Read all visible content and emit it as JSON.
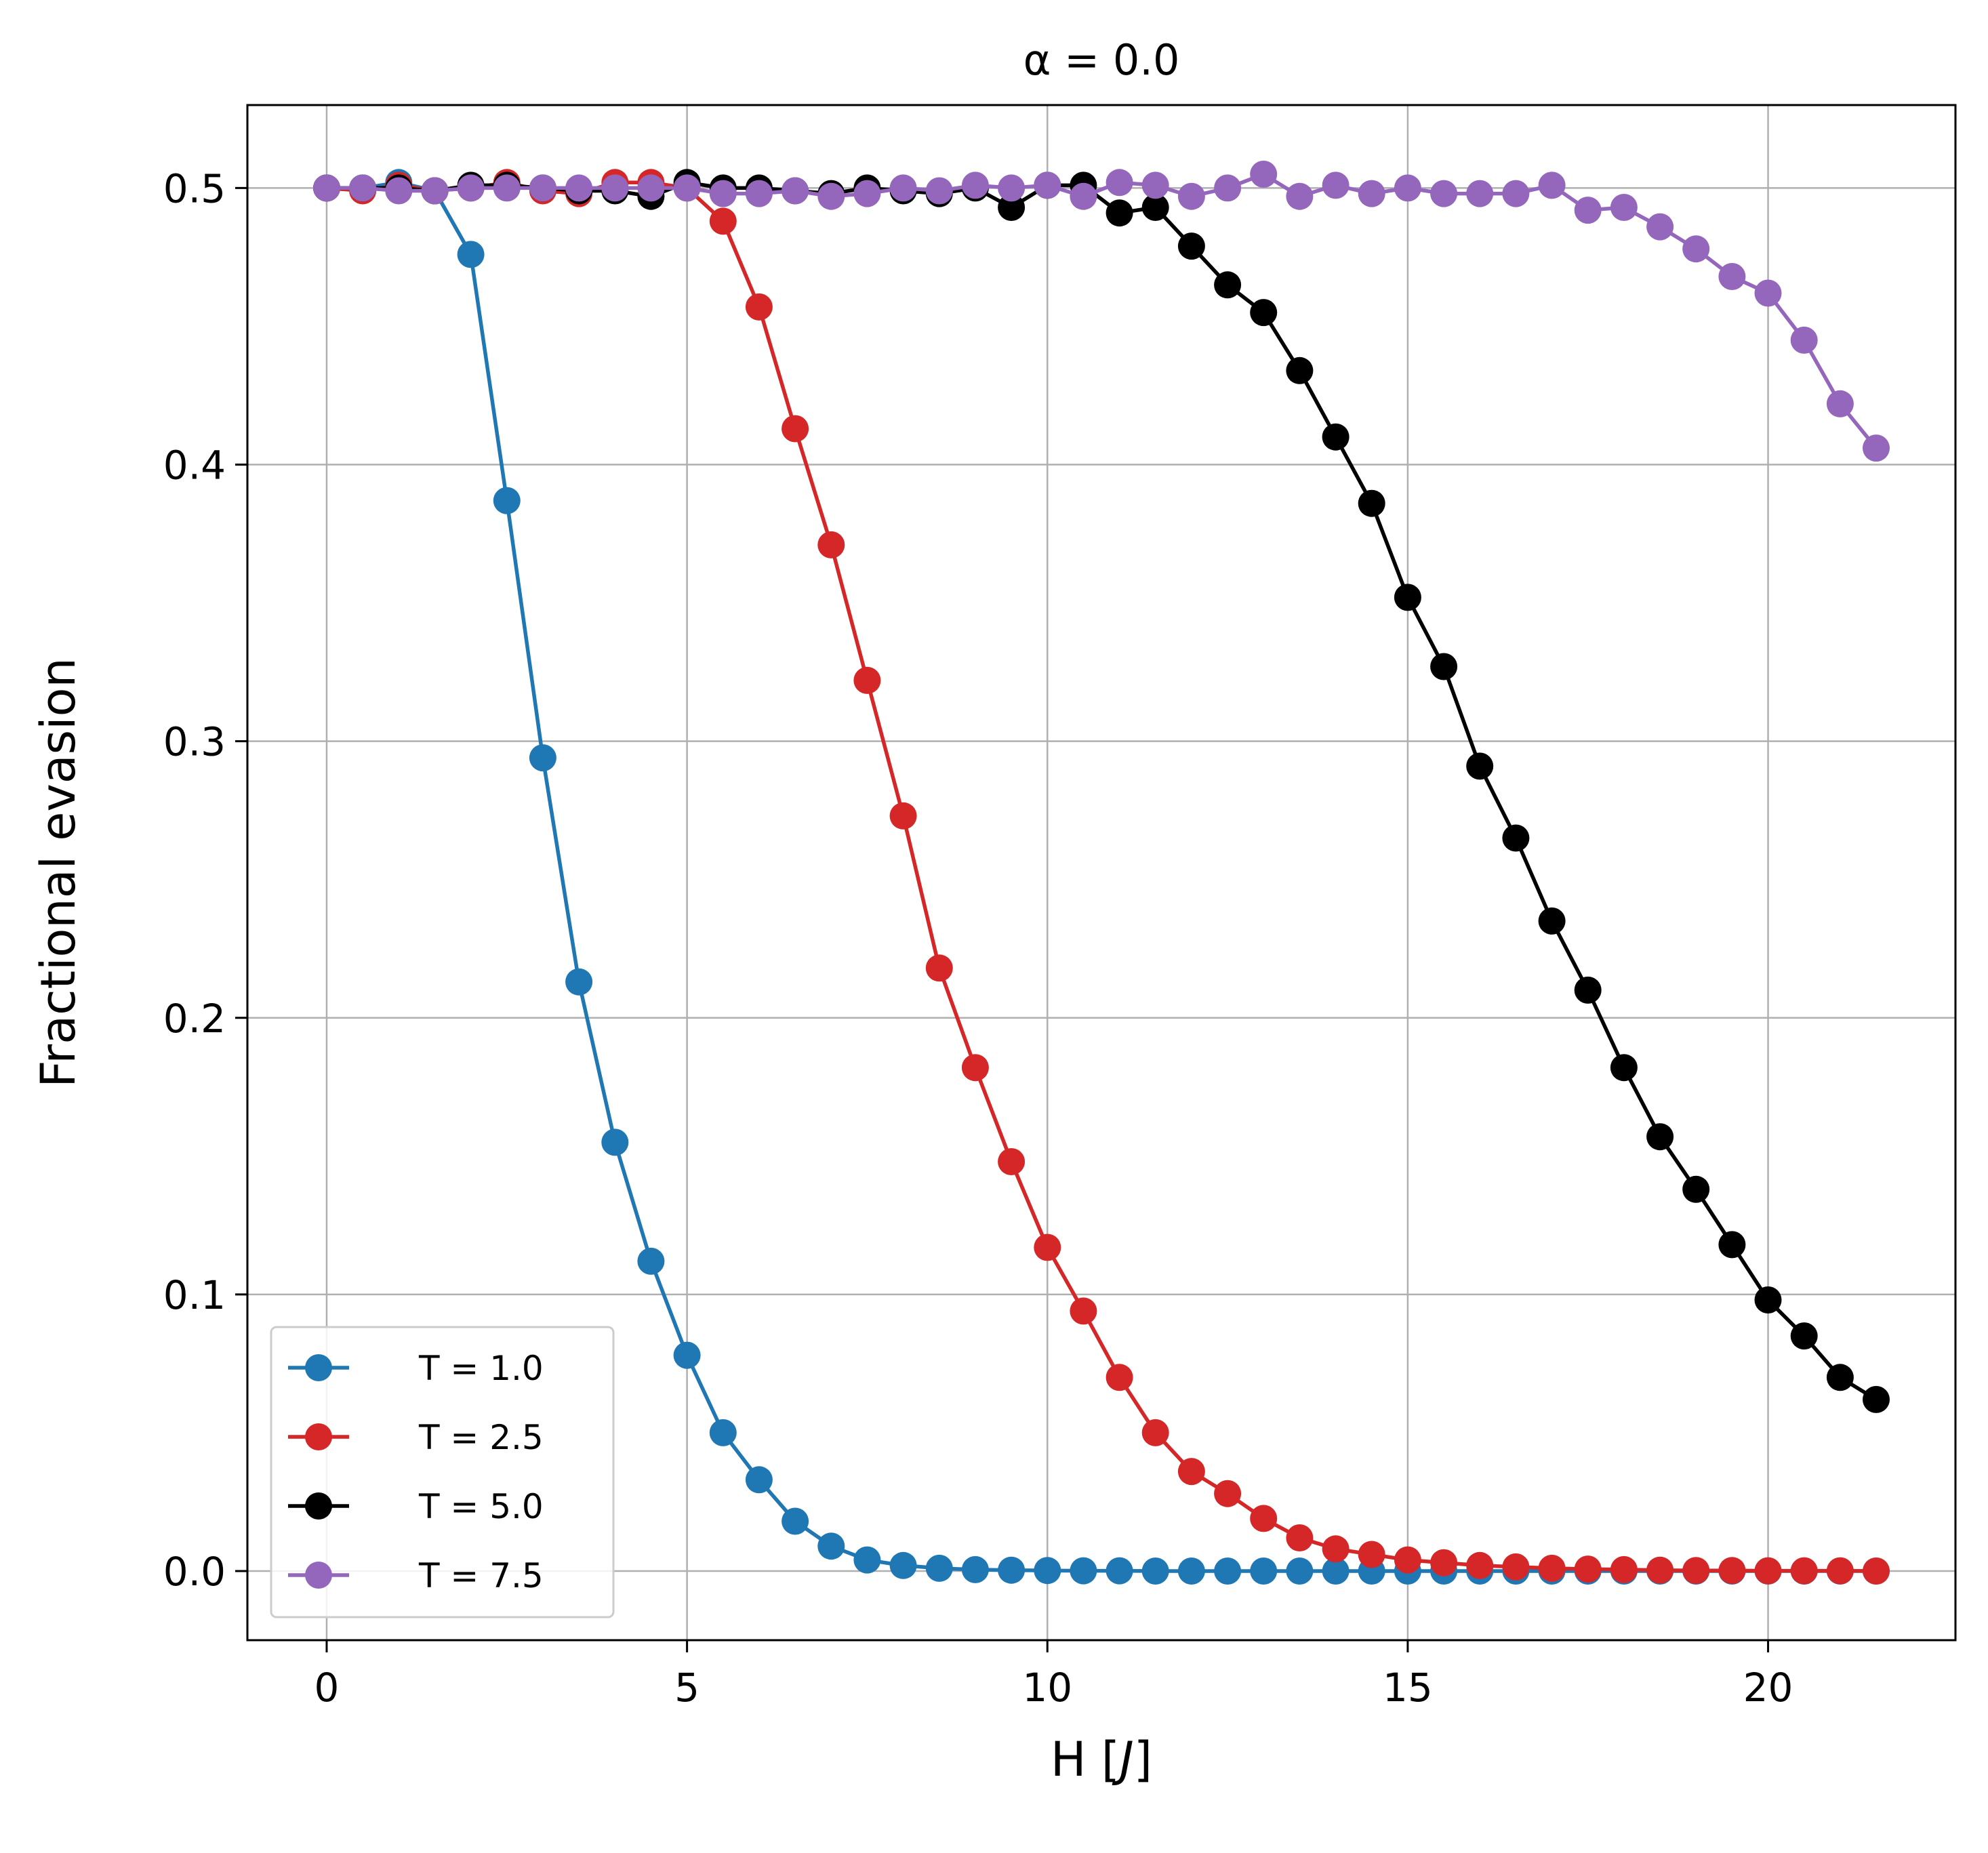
{
  "chart_data": {
    "type": "line",
    "title": "α = 0.0",
    "xlabel": "H [J]",
    "xlabel_parts": {
      "prefix": "H [",
      "italic": "J",
      "suffix": "]"
    },
    "ylabel": "Fractional evasion",
    "xlim": [
      -1.1,
      22.6
    ],
    "ylim": [
      -0.025,
      0.53
    ],
    "xticks": [
      0,
      5,
      10,
      15,
      20
    ],
    "xtick_labels": [
      "0",
      "5",
      "10",
      "15",
      "20"
    ],
    "yticks": [
      0.0,
      0.1,
      0.2,
      0.3,
      0.4,
      0.5
    ],
    "ytick_labels": [
      "0.0",
      "0.1",
      "0.2",
      "0.3",
      "0.4",
      "0.5"
    ],
    "grid": true,
    "legend_position": "lower-left",
    "x": [
      0,
      0.5,
      1,
      1.5,
      2,
      2.5,
      3,
      3.5,
      4,
      4.5,
      5,
      5.5,
      6,
      6.5,
      7,
      7.5,
      8,
      8.5,
      9,
      9.5,
      10,
      10.5,
      11,
      11.5,
      12,
      12.5,
      13,
      13.5,
      14,
      14.5,
      15,
      15.5,
      16,
      16.5,
      17,
      17.5,
      18,
      18.5,
      19,
      19.5,
      20,
      20.5,
      21,
      21.5
    ],
    "series": [
      {
        "name": "T = 1.0",
        "color": "#1f77b4",
        "values": [
          0.5,
          0.5,
          0.502,
          0.499,
          0.476,
          0.387,
          0.294,
          0.213,
          0.155,
          0.112,
          0.078,
          0.05,
          0.033,
          0.018,
          0.009,
          0.004,
          0.002,
          0.001,
          0.0005,
          0.0003,
          0.0002,
          0.0001,
          0.0001,
          0.0,
          0.0,
          0.0,
          0.0,
          0.0,
          0.0,
          0.0,
          0.0,
          0.0,
          0.0,
          0.0,
          0.0,
          0.0,
          0.0,
          0.0,
          0.0,
          0.0,
          0.0,
          0.0,
          0.0,
          0.0
        ]
      },
      {
        "name": "T = 2.5",
        "color": "#d62728",
        "values": [
          0.5,
          0.499,
          0.501,
          0.499,
          0.5,
          0.502,
          0.499,
          0.498,
          0.502,
          0.502,
          0.5,
          0.488,
          0.457,
          0.413,
          0.371,
          0.322,
          0.273,
          0.218,
          0.182,
          0.148,
          0.117,
          0.094,
          0.07,
          0.05,
          0.036,
          0.028,
          0.019,
          0.012,
          0.008,
          0.006,
          0.004,
          0.003,
          0.002,
          0.0015,
          0.001,
          0.0007,
          0.0005,
          0.0003,
          0.0002,
          0.0002,
          0.0001,
          0.0001,
          0.0001,
          0.0
        ]
      },
      {
        "name": "T = 5.0",
        "color": "#000000",
        "values": [
          0.5,
          0.5,
          0.5,
          0.499,
          0.501,
          0.501,
          0.5,
          0.499,
          0.499,
          0.497,
          0.502,
          0.5,
          0.5,
          0.499,
          0.498,
          0.5,
          0.499,
          0.498,
          0.5,
          0.493,
          0.501,
          0.501,
          0.491,
          0.493,
          0.479,
          0.465,
          0.455,
          0.434,
          0.41,
          0.386,
          0.352,
          0.327,
          0.291,
          0.265,
          0.235,
          0.21,
          0.182,
          0.157,
          0.138,
          0.118,
          0.098,
          0.085,
          0.07,
          0.062
        ]
      },
      {
        "name": "T = 7.5",
        "color": "#9467bd",
        "values": [
          0.5,
          0.5,
          0.499,
          0.499,
          0.5,
          0.5,
          0.5,
          0.5,
          0.5,
          0.5,
          0.5,
          0.498,
          0.498,
          0.499,
          0.497,
          0.498,
          0.5,
          0.499,
          0.501,
          0.5,
          0.501,
          0.497,
          0.502,
          0.501,
          0.497,
          0.5,
          0.505,
          0.497,
          0.501,
          0.498,
          0.5,
          0.498,
          0.498,
          0.498,
          0.501,
          0.492,
          0.493,
          0.486,
          0.478,
          0.468,
          0.462,
          0.445,
          0.422,
          0.406
        ]
      }
    ]
  }
}
